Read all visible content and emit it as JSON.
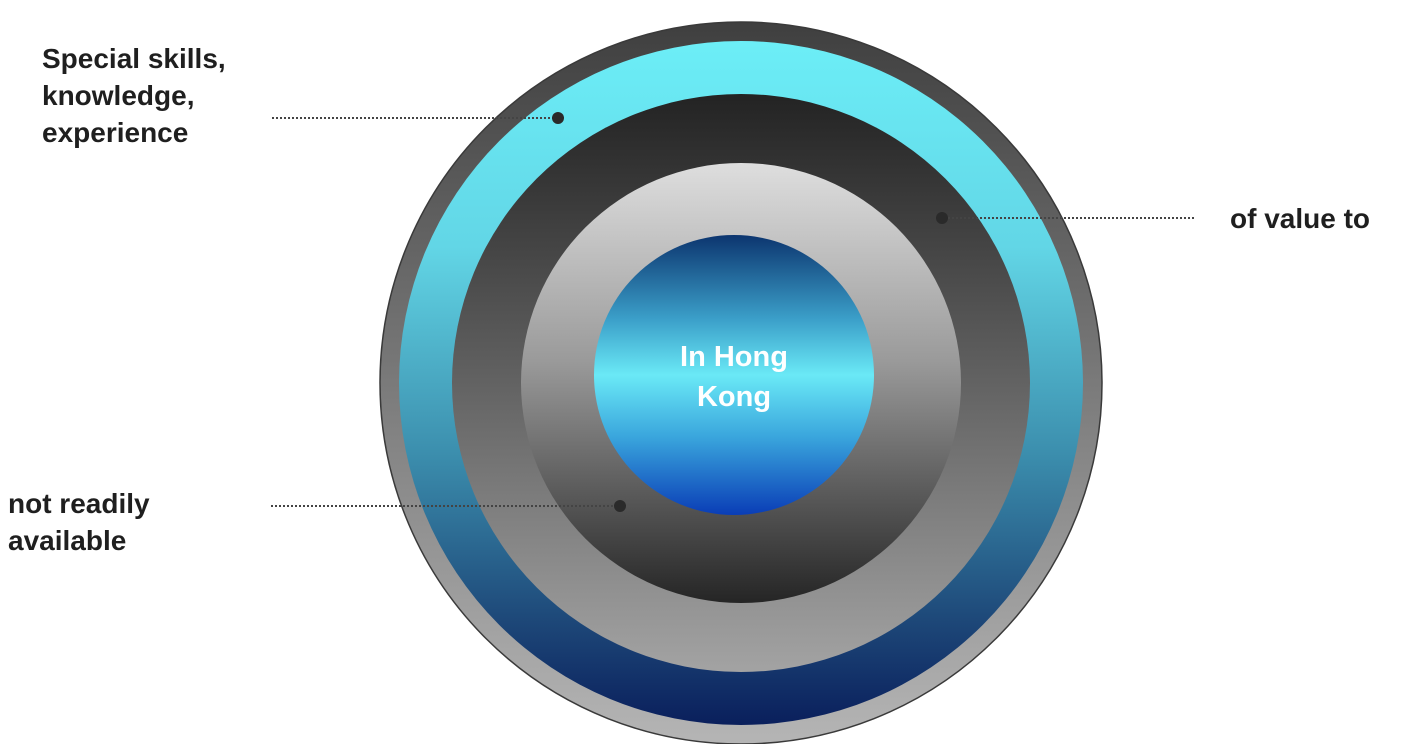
{
  "center": {
    "line1": "In Hong",
    "line2": "Kong"
  },
  "callouts": {
    "skills": {
      "line1": "Special skills,",
      "line2": "knowledge,",
      "line3": "experience"
    },
    "value": {
      "line1": "of value to"
    },
    "availability": {
      "line1": "not readily",
      "line2": "available"
    }
  },
  "colors": {
    "outer_rim": "#6d6d6d",
    "cyan_ring_top": "#6ceef7",
    "cyan_ring_bottom": "#0a1f5c",
    "dark_ring_top": "#262626",
    "dark_ring_bottom": "#a0a0a0",
    "light_ring_top": "#dcdcdc",
    "light_ring_bottom": "#2a2a2a",
    "core_top": "#0b3a7a",
    "core_middle": "#6ce8f6",
    "core_bottom": "#0a3fb8",
    "label_text": "#1f1f1f",
    "center_text": "#ffffff"
  }
}
